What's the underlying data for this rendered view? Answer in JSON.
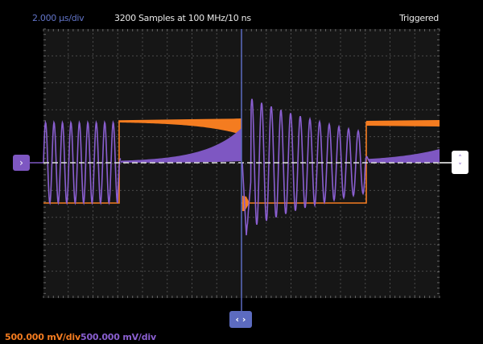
{
  "header": {
    "timebase": "2.000 µs/div",
    "acquisition": "3200 Samples at 100 MHz/10 ns",
    "trigger_status": "Triggered"
  },
  "channels": [
    {
      "scale": "500.000 mV/div",
      "color": "#f47c20"
    },
    {
      "scale": "500.000 mV/div",
      "color": "#7e57c2"
    }
  ],
  "controls": {
    "channel_marker_icon": "chevron-right-icon",
    "channel_marker_glyph": "›",
    "offset_up_glyph": "˄",
    "offset_down_glyph": "˅",
    "horizontal_position_glyph": "‹ ›"
  },
  "colors": {
    "cursor": "#5c6bc0",
    "plot_background": "#161616",
    "grid": "#4a4a4a"
  }
}
